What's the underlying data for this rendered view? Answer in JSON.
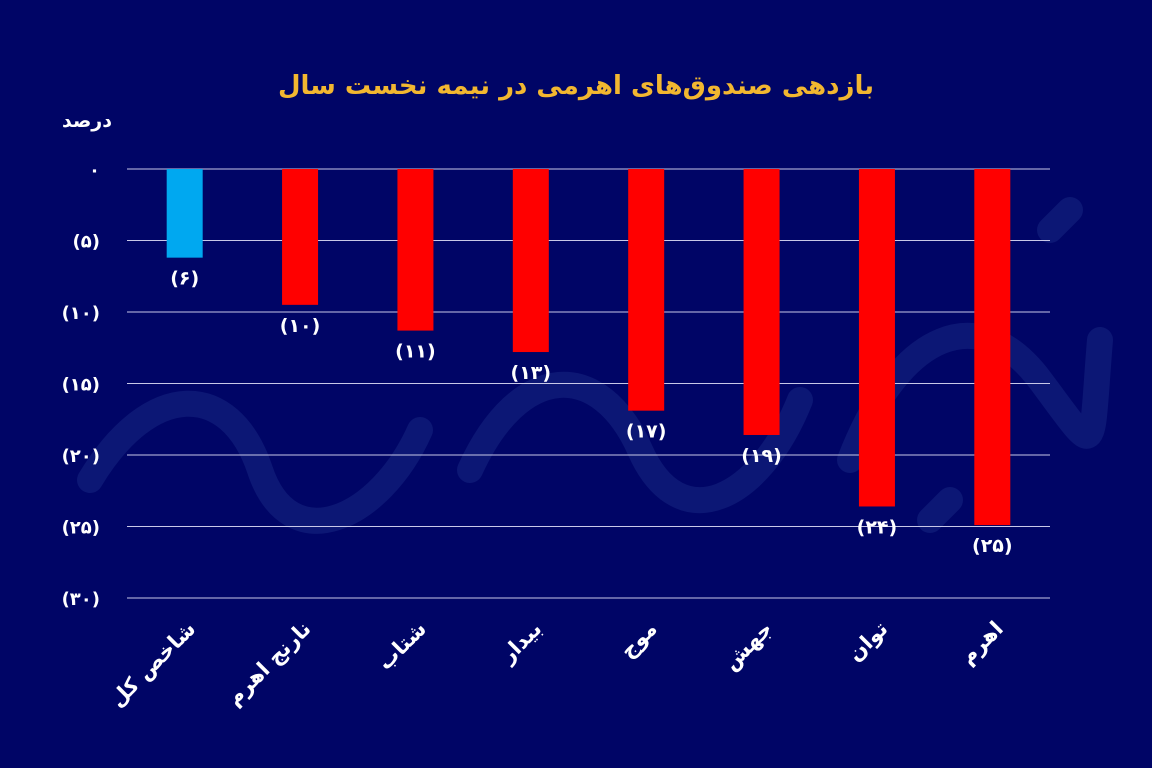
{
  "watermark": "دنیای اقتصاد",
  "colors": {
    "background": "#000566",
    "title": "#f2b730",
    "negative_bar": "#ff0000",
    "index_bar": "#00a8f0",
    "grid": "#c8c8e8",
    "text": "#ffffff"
  },
  "chart_data": {
    "type": "bar",
    "title": "بازدهی صندوق‌های اهرمی در نیمه نخست سال",
    "xlabel": "",
    "ylabel": "درصد",
    "ylim": [
      -30,
      0
    ],
    "grid": true,
    "yticks": [
      0,
      -5,
      -10,
      -15,
      -20,
      -25,
      -30
    ],
    "ytick_labels": [
      "۰",
      "(۵)",
      "(۱۰)",
      "(۱۵)",
      "(۲۰)",
      "(۲۵)",
      "(۳۰)"
    ],
    "categories": [
      "شاخص کل",
      "نارنج اهرم",
      "شتاب",
      "بیدار",
      "موج",
      "جهش",
      "توان",
      "اهرم"
    ],
    "values": [
      -6.2,
      -9.5,
      -11.3,
      -12.8,
      -16.9,
      -18.6,
      -23.6,
      -24.9
    ],
    "data_labels": [
      "(۶)",
      "(۱۰)",
      "(۱۱)",
      "(۱۳)",
      "(۱۷)",
      "(۱۹)",
      "(۲۴)",
      "(۲۵)"
    ],
    "highlight_index": 0
  }
}
